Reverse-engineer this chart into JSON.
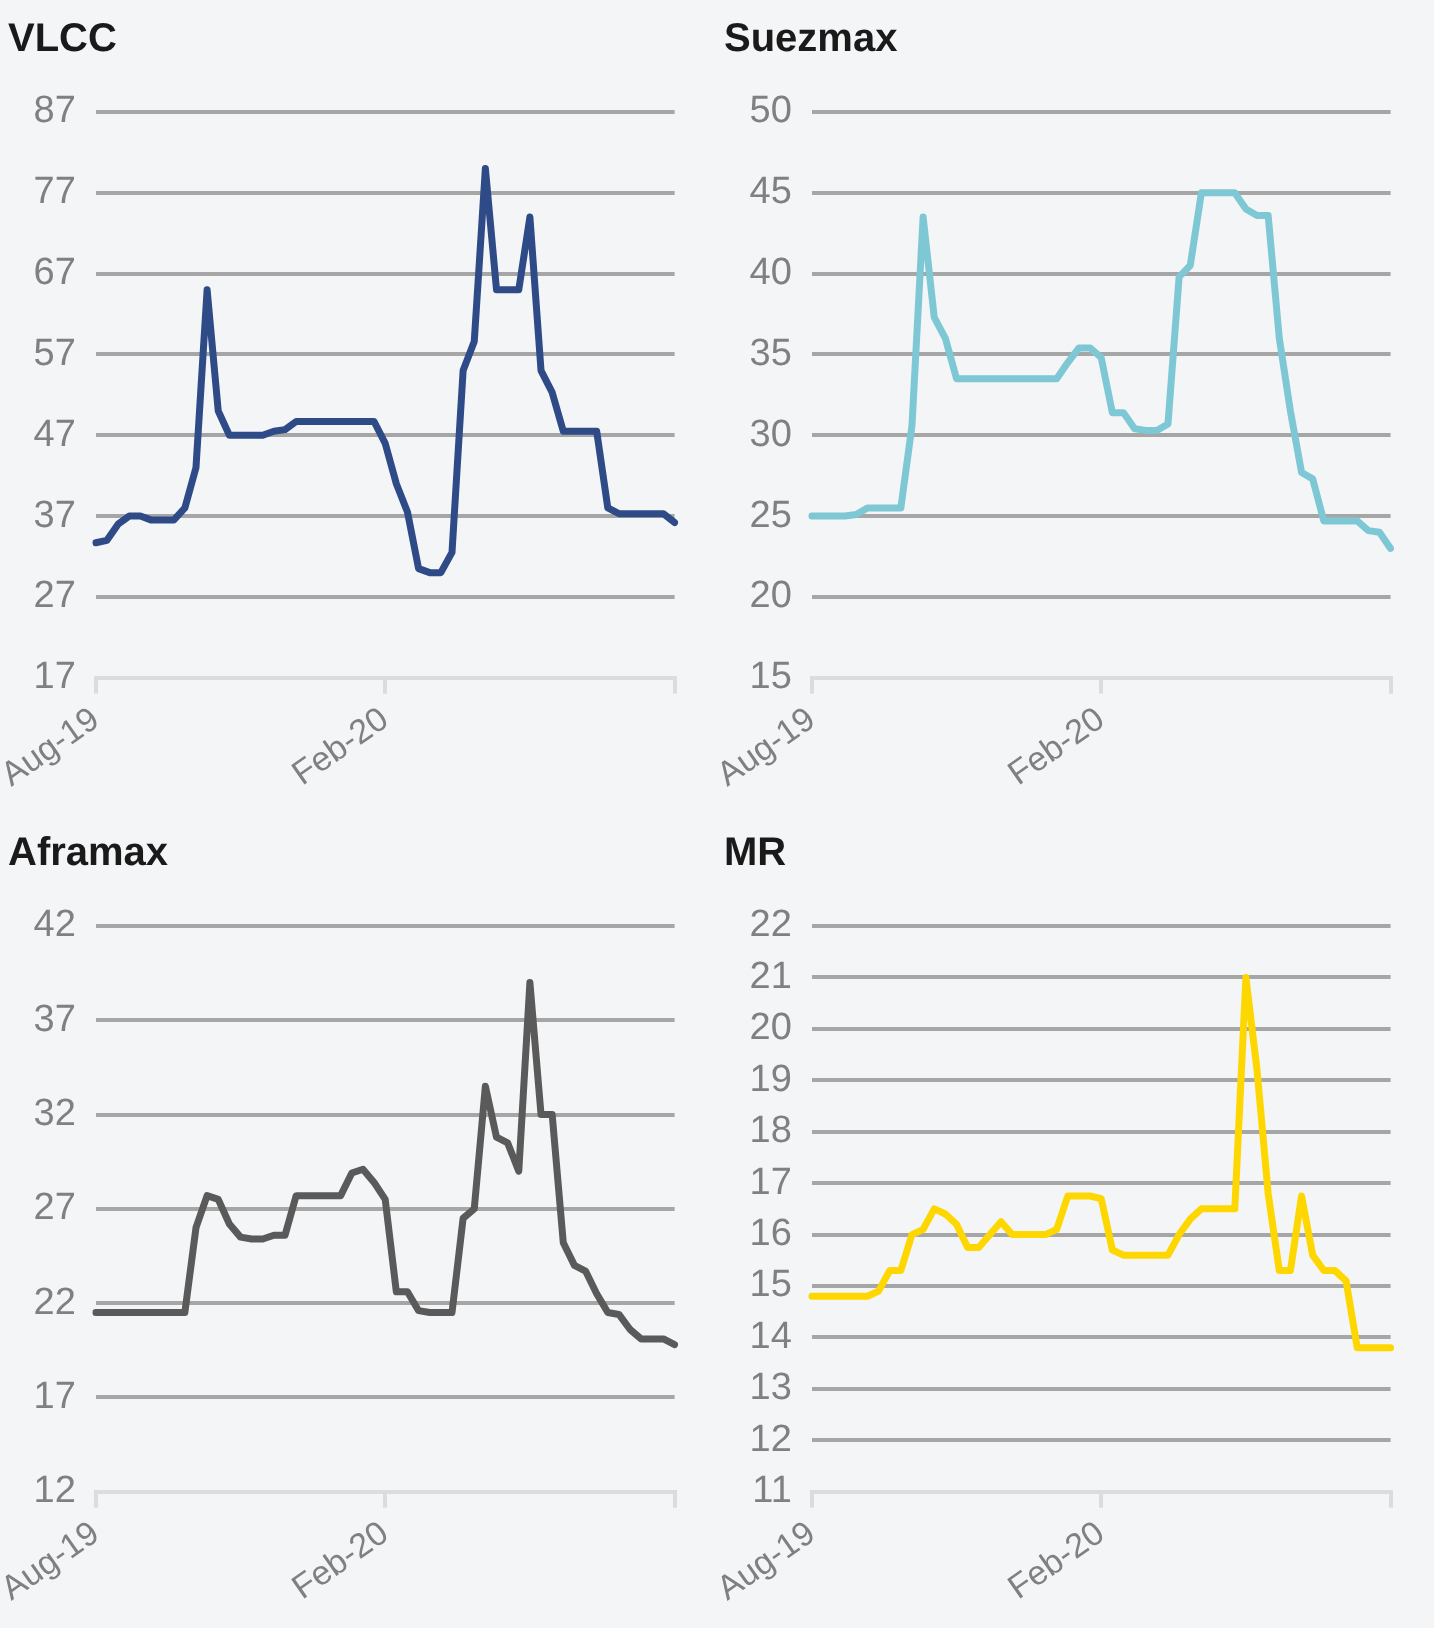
{
  "chart_data": [
    {
      "type": "line",
      "title": "VLCC",
      "categories": [
        "Aug-19",
        null,
        null,
        null,
        null,
        null,
        null,
        null,
        null,
        null,
        null,
        null,
        null,
        null,
        null,
        null,
        null,
        null,
        null,
        null,
        null,
        null,
        null,
        null,
        null,
        null,
        "Feb-20",
        null,
        null,
        null,
        null,
        null,
        null,
        null,
        null,
        null,
        null,
        null,
        null,
        null,
        null,
        null,
        null,
        null,
        null,
        null,
        null,
        null,
        null,
        null,
        null,
        null,
        null
      ],
      "series": [
        {
          "color": "#2e4a87",
          "values": [
            33.7,
            34,
            36,
            37,
            37,
            36.5,
            36.5,
            36.5,
            38,
            43,
            65,
            50,
            47,
            47,
            47,
            47,
            47.5,
            47.7,
            48.7,
            48.7,
            48.7,
            48.7,
            48.7,
            48.7,
            48.7,
            48.7,
            46,
            41,
            37.5,
            30.5,
            30,
            30,
            32.5,
            55,
            58.6,
            80,
            65,
            65,
            65,
            74,
            55,
            52.3,
            47.5,
            47.5,
            47.5,
            47.5,
            38,
            37.3,
            37.3,
            37.3,
            37.3,
            37.3,
            36.2
          ]
        }
      ],
      "ylim": [
        17,
        87
      ],
      "yticks": [
        17,
        27,
        37,
        47,
        57,
        67,
        77,
        87
      ],
      "grid": "y",
      "marker": "none",
      "legend": false
    },
    {
      "type": "line",
      "title": "Suezmax",
      "categories": [
        "Aug-19",
        null,
        null,
        null,
        null,
        null,
        null,
        null,
        null,
        null,
        null,
        null,
        null,
        null,
        null,
        null,
        null,
        null,
        null,
        null,
        null,
        null,
        null,
        null,
        null,
        null,
        "Feb-20",
        null,
        null,
        null,
        null,
        null,
        null,
        null,
        null,
        null,
        null,
        null,
        null,
        null,
        null,
        null,
        null,
        null,
        null,
        null,
        null,
        null,
        null,
        null,
        null,
        null,
        null
      ],
      "series": [
        {
          "color": "#7ec8d6",
          "values": [
            25,
            25,
            25,
            25,
            25.1,
            25.5,
            25.5,
            25.5,
            25.5,
            30.6,
            43.5,
            37.3,
            36,
            33.5,
            33.5,
            33.5,
            33.5,
            33.5,
            33.5,
            33.5,
            33.5,
            33.5,
            33.5,
            34.5,
            35.4,
            35.4,
            34.8,
            31.4,
            31.4,
            30.4,
            30.3,
            30.3,
            30.7,
            39.8,
            40.5,
            45,
            45,
            45,
            45,
            44,
            43.6,
            43.6,
            36,
            31.5,
            27.7,
            27.3,
            24.7,
            24.7,
            24.7,
            24.7,
            24.1,
            24,
            23
          ]
        }
      ],
      "ylim": [
        15,
        50
      ],
      "yticks": [
        15,
        20,
        25,
        30,
        35,
        40,
        45,
        50
      ],
      "grid": "y",
      "marker": "none",
      "legend": false
    },
    {
      "type": "line",
      "title": "Aframax",
      "categories": [
        "Aug-19",
        null,
        null,
        null,
        null,
        null,
        null,
        null,
        null,
        null,
        null,
        null,
        null,
        null,
        null,
        null,
        null,
        null,
        null,
        null,
        null,
        null,
        null,
        null,
        null,
        null,
        "Feb-20",
        null,
        null,
        null,
        null,
        null,
        null,
        null,
        null,
        null,
        null,
        null,
        null,
        null,
        null,
        null,
        null,
        null,
        null,
        null,
        null,
        null,
        null,
        null,
        null,
        null,
        null
      ],
      "series": [
        {
          "color": "#5a5a5a",
          "values": [
            21.5,
            21.5,
            21.5,
            21.5,
            21.5,
            21.5,
            21.5,
            21.5,
            21.5,
            26,
            27.7,
            27.5,
            26.2,
            25.5,
            25.4,
            25.4,
            25.6,
            25.6,
            27.7,
            27.7,
            27.7,
            27.7,
            27.7,
            28.9,
            29.1,
            28.4,
            27.5,
            22.6,
            22.6,
            21.6,
            21.5,
            21.5,
            21.5,
            26.5,
            27,
            33.5,
            30.8,
            30.5,
            29,
            39,
            32,
            32,
            25.2,
            24,
            23.7,
            22.5,
            21.5,
            21.4,
            20.6,
            20.1,
            20.1,
            20.1,
            19.8
          ]
        }
      ],
      "ylim": [
        12,
        42
      ],
      "yticks": [
        12,
        17,
        22,
        27,
        32,
        37,
        42
      ],
      "grid": "y",
      "marker": "none",
      "legend": false
    },
    {
      "type": "line",
      "title": "MR",
      "categories": [
        "Aug-19",
        null,
        null,
        null,
        null,
        null,
        null,
        null,
        null,
        null,
        null,
        null,
        null,
        null,
        null,
        null,
        null,
        null,
        null,
        null,
        null,
        null,
        null,
        null,
        null,
        null,
        "Feb-20",
        null,
        null,
        null,
        null,
        null,
        null,
        null,
        null,
        null,
        null,
        null,
        null,
        null,
        null,
        null,
        null,
        null,
        null,
        null,
        null,
        null,
        null,
        null,
        null,
        null,
        null
      ],
      "series": [
        {
          "color": "#ffd700",
          "values": [
            14.8,
            14.8,
            14.8,
            14.8,
            14.8,
            14.8,
            14.9,
            15.3,
            15.3,
            16,
            16.1,
            16.5,
            16.4,
            16.2,
            15.75,
            15.75,
            16,
            16.25,
            16,
            16,
            16,
            16,
            16.1,
            16.75,
            16.75,
            16.75,
            16.7,
            15.7,
            15.6,
            15.6,
            15.6,
            15.6,
            15.6,
            16,
            16.3,
            16.5,
            16.5,
            16.5,
            16.5,
            21,
            19.2,
            16.8,
            15.3,
            15.3,
            16.75,
            15.6,
            15.3,
            15.3,
            15.1,
            13.8,
            13.8,
            13.8,
            13.8
          ]
        }
      ],
      "ylim": [
        11,
        22
      ],
      "yticks": [
        11,
        12,
        13,
        14,
        15,
        16,
        17,
        18,
        19,
        20,
        21,
        22
      ],
      "grid": "y",
      "marker": "none",
      "legend": false
    }
  ]
}
